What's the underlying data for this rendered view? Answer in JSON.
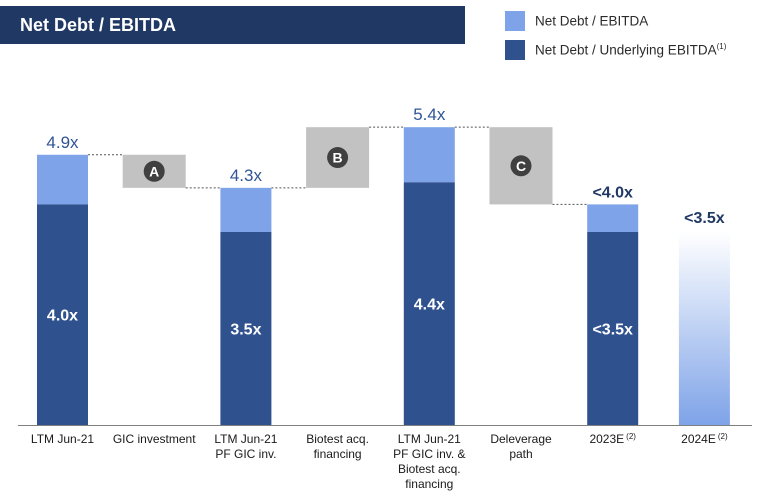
{
  "title": "Net Debt / EBITDA",
  "legend": [
    {
      "label": "Net Debt / EBITDA",
      "sup": "",
      "color": "#7ea3e8"
    },
    {
      "label": "Net Debt / Underlying EBITDA",
      "sup": "(1)",
      "color": "#2f528f"
    }
  ],
  "colors": {
    "light": "#7ea3e8",
    "dark": "#2f528f",
    "bridge": "#c2c2c2",
    "label_blue": "#2f5597",
    "bold_navy": "#1f3864"
  },
  "chart_data": {
    "type": "bar",
    "subtype": "waterfall",
    "ylim": [
      0,
      6.6
    ],
    "grid": false,
    "legend_position": "top-right",
    "categories": [
      {
        "lines": [
          "LTM Jun-21"
        ],
        "sup": ""
      },
      {
        "lines": [
          "GIC investment"
        ],
        "sup": ""
      },
      {
        "lines": [
          "LTM Jun-21",
          "PF GIC inv."
        ],
        "sup": ""
      },
      {
        "lines": [
          "Biotest acq.",
          "financing"
        ],
        "sup": ""
      },
      {
        "lines": [
          "LTM Jun-21",
          "PF GIC inv. &",
          "Biotest acq.",
          "financing"
        ],
        "sup": ""
      },
      {
        "lines": [
          "Deleverage",
          "path"
        ],
        "sup": ""
      },
      {
        "lines": [
          "2023E"
        ],
        "sup": "(2)"
      },
      {
        "lines": [
          "2024E"
        ],
        "sup": "(2)"
      }
    ],
    "bars": [
      {
        "kind": "stack",
        "dark": 4.0,
        "total": 4.9,
        "dark_label": "4.0x",
        "total_label": "4.9x",
        "total_bold": false
      },
      {
        "kind": "bridge",
        "from": 4.9,
        "to": 4.3,
        "marker": "A"
      },
      {
        "kind": "stack",
        "dark": 3.5,
        "total": 4.3,
        "dark_label": "3.5x",
        "total_label": "4.3x",
        "total_bold": false
      },
      {
        "kind": "bridge",
        "from": 4.3,
        "to": 5.4,
        "marker": "B"
      },
      {
        "kind": "stack",
        "dark": 4.4,
        "total": 5.4,
        "dark_label": "4.4x",
        "total_label": "5.4x",
        "total_bold": false
      },
      {
        "kind": "bridge",
        "from": 5.4,
        "to": 4.0,
        "marker": "C"
      },
      {
        "kind": "stack",
        "dark": 3.5,
        "total": 4.0,
        "dark_label": "<3.5x",
        "total_label": "<4.0x",
        "total_bold": true
      },
      {
        "kind": "fade",
        "total": 3.5,
        "total_label": "<3.5x",
        "total_bold": true
      }
    ]
  }
}
